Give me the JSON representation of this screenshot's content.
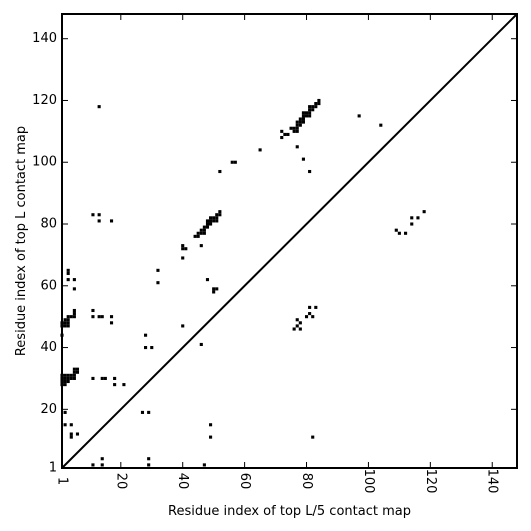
{
  "chart_data": {
    "type": "scatter",
    "title": "",
    "xlabel": "Residue index of top L/5 contact map",
    "ylabel": "Residue index of top L contact map",
    "xlim": [
      1,
      148
    ],
    "ylim": [
      1,
      148
    ],
    "x_ticks": [
      1,
      20,
      40,
      60,
      80,
      100,
      120,
      140
    ],
    "y_ticks": [
      1,
      20,
      40,
      60,
      80,
      100,
      120,
      140
    ],
    "x_tick_labels": [
      "1",
      "20",
      "40",
      "60",
      "80",
      "100",
      "120",
      "140"
    ],
    "y_tick_labels": [
      "1",
      "20",
      "40",
      "60",
      "80",
      "100",
      "120",
      "140"
    ],
    "diagonal": true,
    "grid": false,
    "marker": "square",
    "marker_color": "#000000",
    "series": [
      {
        "values": [
          [
            1,
            28
          ],
          [
            1,
            29
          ],
          [
            1,
            30
          ],
          [
            1,
            31
          ],
          [
            2,
            28
          ],
          [
            2,
            29
          ],
          [
            2,
            30
          ],
          [
            2,
            31
          ],
          [
            3,
            29
          ],
          [
            3,
            30
          ],
          [
            3,
            31
          ],
          [
            4,
            30
          ],
          [
            4,
            31
          ],
          [
            5,
            30
          ],
          [
            5,
            31
          ],
          [
            5,
            32
          ],
          [
            5,
            33
          ],
          [
            6,
            32
          ],
          [
            6,
            33
          ],
          [
            1,
            47
          ],
          [
            1,
            48
          ],
          [
            2,
            47
          ],
          [
            2,
            48
          ],
          [
            3,
            47
          ],
          [
            3,
            48
          ],
          [
            2,
            49
          ],
          [
            3,
            49
          ],
          [
            3,
            50
          ],
          [
            4,
            50
          ],
          [
            5,
            50
          ],
          [
            5,
            51
          ],
          [
            5,
            52
          ],
          [
            1,
            44
          ],
          [
            3,
            62
          ],
          [
            3,
            64
          ],
          [
            3,
            65
          ],
          [
            5,
            62
          ],
          [
            5,
            59
          ],
          [
            2,
            19
          ],
          [
            2,
            15
          ],
          [
            4,
            15
          ],
          [
            4,
            11
          ],
          [
            4,
            12
          ],
          [
            6,
            12
          ],
          [
            11,
            52
          ],
          [
            11,
            50
          ],
          [
            13,
            50
          ],
          [
            14,
            50
          ],
          [
            17,
            50
          ],
          [
            17,
            48
          ],
          [
            11,
            83
          ],
          [
            13,
            83
          ],
          [
            13,
            81
          ],
          [
            17,
            81
          ],
          [
            13,
            118
          ],
          [
            11,
            30
          ],
          [
            14,
            30
          ],
          [
            15,
            30
          ],
          [
            18,
            30
          ],
          [
            18,
            28
          ],
          [
            21,
            28
          ],
          [
            11,
            2
          ],
          [
            14,
            2
          ],
          [
            14,
            4
          ],
          [
            27,
            19
          ],
          [
            29,
            19
          ],
          [
            28,
            44
          ],
          [
            28,
            40
          ],
          [
            30,
            40
          ],
          [
            29,
            4
          ],
          [
            29,
            2
          ],
          [
            32,
            65
          ],
          [
            32,
            61
          ],
          [
            40,
            72
          ],
          [
            40,
            73
          ],
          [
            41,
            72
          ],
          [
            40,
            69
          ],
          [
            40,
            47
          ],
          [
            44,
            76
          ],
          [
            45,
            76
          ],
          [
            45,
            77
          ],
          [
            46,
            77
          ],
          [
            46,
            78
          ],
          [
            47,
            77
          ],
          [
            47,
            78
          ],
          [
            47,
            79
          ],
          [
            48,
            79
          ],
          [
            48,
            80
          ],
          [
            48,
            81
          ],
          [
            49,
            80
          ],
          [
            49,
            81
          ],
          [
            49,
            82
          ],
          [
            50,
            82
          ],
          [
            50,
            81
          ],
          [
            51,
            82
          ],
          [
            51,
            83
          ],
          [
            52,
            83
          ],
          [
            52,
            84
          ],
          [
            51,
            81
          ],
          [
            46,
            73
          ],
          [
            46,
            41
          ],
          [
            47,
            2
          ],
          [
            48,
            62
          ],
          [
            49,
            15
          ],
          [
            49,
            11
          ],
          [
            50,
            58
          ],
          [
            50,
            59
          ],
          [
            51,
            59
          ],
          [
            52,
            97
          ],
          [
            56,
            100
          ],
          [
            57,
            100
          ],
          [
            65,
            104
          ],
          [
            72,
            108
          ],
          [
            72,
            110
          ],
          [
            73,
            109
          ],
          [
            74,
            109
          ],
          [
            75,
            111
          ],
          [
            76,
            110
          ],
          [
            76,
            111
          ],
          [
            77,
            110
          ],
          [
            77,
            111
          ],
          [
            77,
            112
          ],
          [
            77,
            113
          ],
          [
            78,
            112
          ],
          [
            78,
            113
          ],
          [
            78,
            114
          ],
          [
            79,
            113
          ],
          [
            79,
            114
          ],
          [
            79,
            115
          ],
          [
            79,
            116
          ],
          [
            80,
            115
          ],
          [
            80,
            116
          ],
          [
            81,
            115
          ],
          [
            81,
            116
          ],
          [
            81,
            117
          ],
          [
            81,
            118
          ],
          [
            82,
            117
          ],
          [
            82,
            118
          ],
          [
            83,
            118
          ],
          [
            83,
            119
          ],
          [
            84,
            119
          ],
          [
            84,
            120
          ],
          [
            77,
            105
          ],
          [
            79,
            101
          ],
          [
            81,
            97
          ],
          [
            76,
            46
          ],
          [
            77,
            47
          ],
          [
            77,
            49
          ],
          [
            78,
            46
          ],
          [
            78,
            48
          ],
          [
            80,
            50
          ],
          [
            81,
            51
          ],
          [
            81,
            53
          ],
          [
            82,
            50
          ],
          [
            83,
            53
          ],
          [
            82,
            11
          ],
          [
            97,
            115
          ],
          [
            104,
            112
          ],
          [
            109,
            78
          ],
          [
            110,
            77
          ],
          [
            112,
            77
          ],
          [
            114,
            82
          ],
          [
            114,
            80
          ],
          [
            116,
            82
          ],
          [
            118,
            84
          ]
        ]
      }
    ]
  }
}
